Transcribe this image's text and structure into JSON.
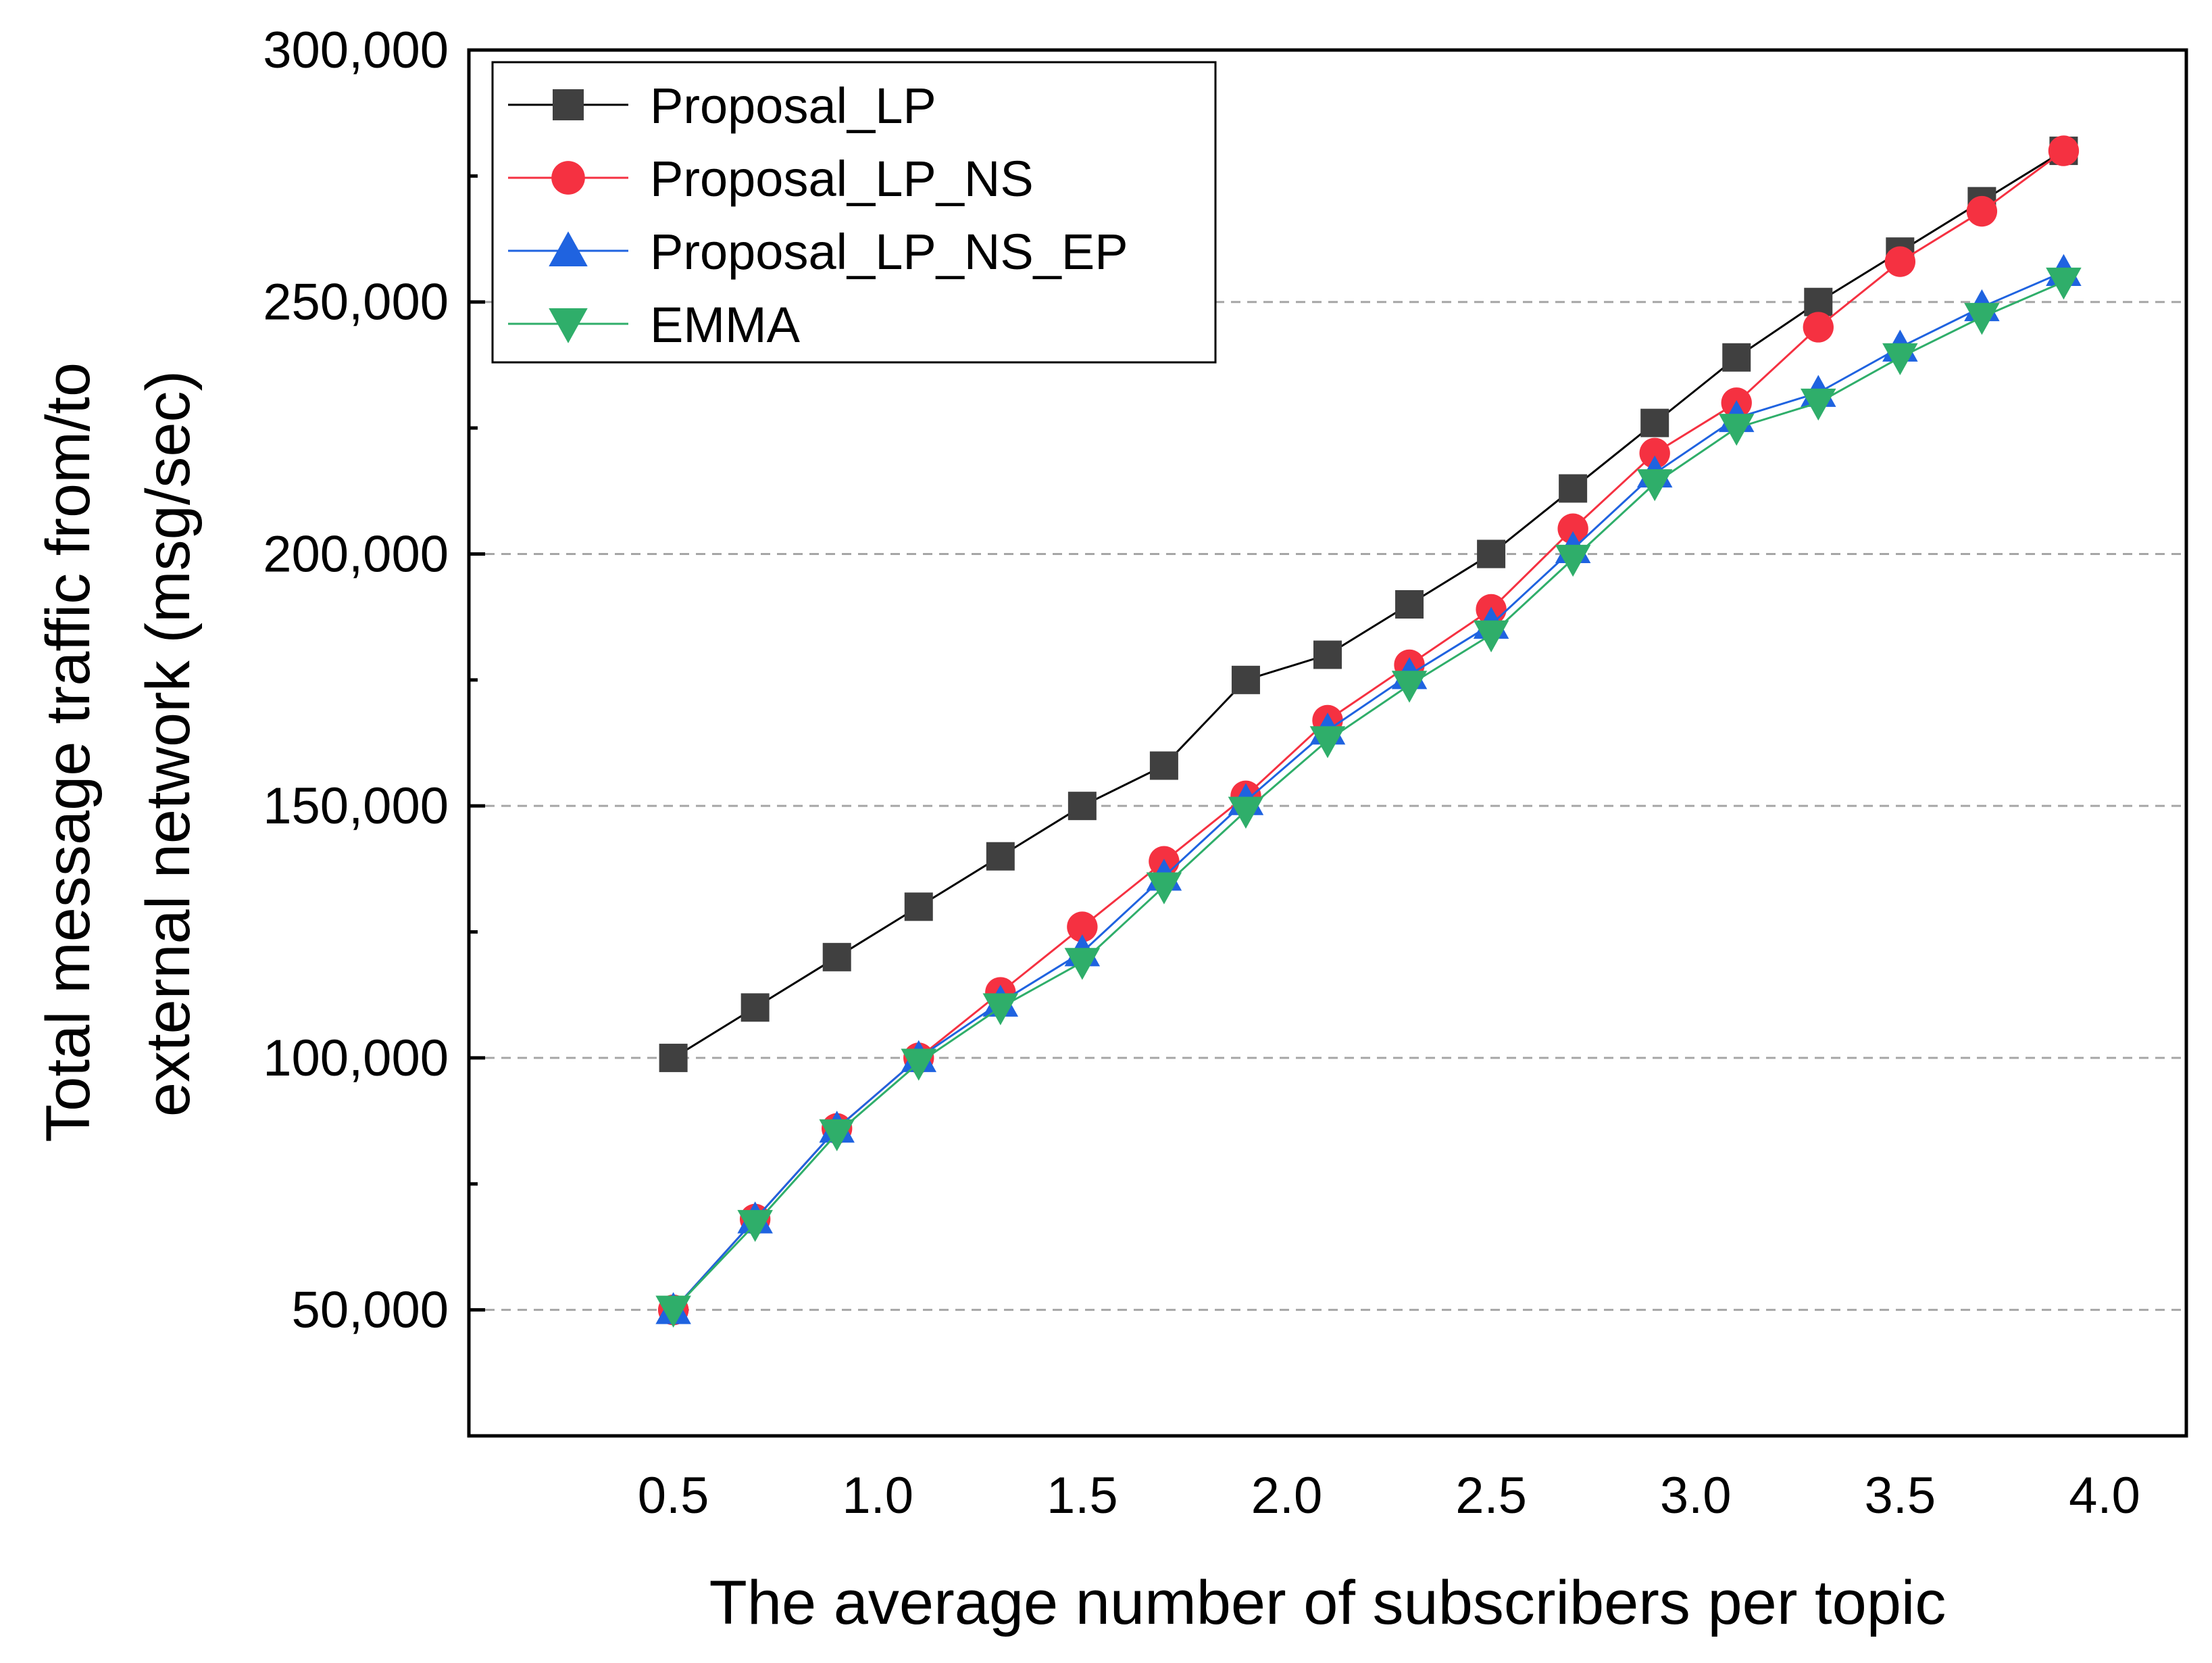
{
  "chart_data": {
    "type": "line",
    "title": "",
    "xlabel": "The average number of subscribers per topic",
    "ylabel_lines": [
      "Total message traffic from/to",
      "external network (msg/sec)"
    ],
    "xlim": [
      0.0,
      4.2
    ],
    "ylim": [
      25000,
      300000
    ],
    "x_ticks": [
      0.5,
      1.0,
      1.5,
      2.0,
      2.5,
      3.0,
      3.5,
      4.0
    ],
    "x_tick_labels": [
      "0.5",
      "1.0",
      "1.5",
      "2.0",
      "2.5",
      "3.0",
      "3.5",
      "4.0"
    ],
    "y_ticks": [
      50000,
      100000,
      150000,
      200000,
      250000,
      300000
    ],
    "y_tick_labels": [
      "50,000",
      "100,000",
      "150,000",
      "200,000",
      "250,000",
      "300,000"
    ],
    "y_minor_ticks": [
      75000,
      125000,
      175000,
      225000,
      275000
    ],
    "gridlines_y": [
      50000,
      100000,
      150000,
      200000,
      250000
    ],
    "legend_position": "top-left",
    "x": [
      0.5,
      0.7,
      0.9,
      1.1,
      1.3,
      1.5,
      1.7,
      1.9,
      2.1,
      2.3,
      2.5,
      2.7,
      2.9,
      3.1,
      3.3,
      3.5,
      3.7,
      3.9
    ],
    "series": [
      {
        "name": "Proposal_LP",
        "marker": "square",
        "color": "#404040",
        "line_color": "#000000",
        "values": [
          100000,
          110000,
          120000,
          130000,
          140000,
          150000,
          158000,
          175000,
          180000,
          190000,
          200000,
          213000,
          226000,
          239000,
          250000,
          260000,
          270000,
          280000
        ]
      },
      {
        "name": "Proposal_LP_NS",
        "marker": "circle",
        "color": "#f53141",
        "line_color": "#f53141",
        "values": [
          50000,
          68000,
          86000,
          100000,
          113000,
          126000,
          139000,
          152000,
          167000,
          178000,
          189000,
          205000,
          220000,
          230000,
          245000,
          258000,
          268000,
          280000
        ]
      },
      {
        "name": "Proposal_LP_NS_EP",
        "marker": "triangle-up",
        "color": "#1f63e0",
        "line_color": "#1f63e0",
        "values": [
          50000,
          68000,
          86000,
          100000,
          111000,
          121000,
          136000,
          151000,
          165000,
          176000,
          186000,
          201000,
          216000,
          227000,
          232000,
          241000,
          249000,
          256000
        ]
      },
      {
        "name": "EMMA",
        "marker": "triangle-down",
        "color": "#2fae6a",
        "line_color": "#2fae6a",
        "values": [
          50000,
          67000,
          85000,
          99000,
          110000,
          119000,
          134000,
          149000,
          163000,
          174000,
          184000,
          199000,
          214000,
          225000,
          230000,
          239000,
          247000,
          254000
        ]
      }
    ]
  }
}
